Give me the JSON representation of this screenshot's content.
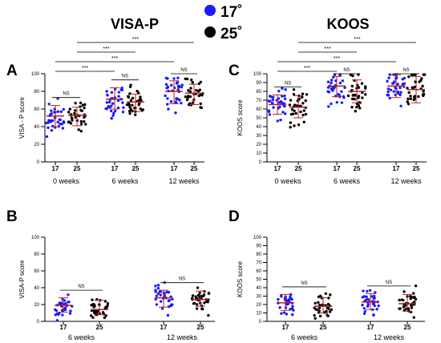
{
  "figure": {
    "legend": [
      {
        "label": "17˚",
        "color": "#1a1aff"
      },
      {
        "label": "25˚",
        "color": "#000000"
      }
    ],
    "colors": {
      "mean_line": "#b22222",
      "sig_line": "#000000"
    }
  },
  "chart_data": [
    {
      "panel": "A",
      "type": "scatter",
      "title": "VISA-P",
      "ylabel": "VISA - P score",
      "ylim": [
        0,
        100
      ],
      "yticks": [
        0,
        20,
        40,
        60,
        80,
        100
      ],
      "groups": [
        "0 weeks",
        "6 weeks",
        "12 weeks"
      ],
      "conditions": [
        "17",
        "25"
      ],
      "summary": [
        {
          "group": "0 weeks",
          "cond": "17",
          "mean": 52,
          "low": 40,
          "high": 64
        },
        {
          "group": "0 weeks",
          "cond": "25",
          "mean": 53,
          "low": 41,
          "high": 62
        },
        {
          "group": "6 weeks",
          "cond": "17",
          "mean": 71,
          "low": 60,
          "high": 84
        },
        {
          "group": "6 weeks",
          "cond": "25",
          "mean": 68,
          "low": 57,
          "high": 77
        },
        {
          "group": "12 weeks",
          "cond": "17",
          "mean": 80,
          "low": 66,
          "high": 92
        },
        {
          "group": "12 weeks",
          "cond": "25",
          "mean": 78,
          "low": 65,
          "high": 88
        }
      ],
      "comparisons": [
        {
          "from": "0 weeks/17",
          "to": "0 weeks/25",
          "label": "NS"
        },
        {
          "from": "6 weeks/17",
          "to": "6 weeks/25",
          "label": "NS"
        },
        {
          "from": "12 weeks/17",
          "to": "12 weeks/25",
          "label": "NS"
        },
        {
          "from": "0 weeks/17",
          "to": "6 weeks/17",
          "label": "***"
        },
        {
          "from": "0 weeks/17",
          "to": "12 weeks/17",
          "label": "***"
        },
        {
          "from": "0 weeks/25",
          "to": "6 weeks/25",
          "label": "***"
        },
        {
          "from": "0 weeks/25",
          "to": "12 weeks/25",
          "label": "***"
        }
      ]
    },
    {
      "panel": "C",
      "type": "scatter",
      "title": "KOOS",
      "ylabel": "KOOS score",
      "ylim": [
        0,
        100
      ],
      "yticks": [
        0,
        10,
        20,
        30,
        40,
        50,
        60,
        70,
        80,
        90,
        100
      ],
      "groups": [
        "0 weeks",
        "6 weeks",
        "12 weeks"
      ],
      "conditions": [
        "17",
        "25"
      ],
      "summary": [
        {
          "group": "0 weeks",
          "cond": "17",
          "mean": 65,
          "low": 54,
          "high": 76
        },
        {
          "group": "0 weeks",
          "cond": "25",
          "mean": 62,
          "low": 50,
          "high": 75
        },
        {
          "group": "6 weeks",
          "cond": "17",
          "mean": 86,
          "low": 74,
          "high": 97
        },
        {
          "group": "6 weeks",
          "cond": "25",
          "mean": 80,
          "low": 67,
          "high": 93
        },
        {
          "group": "12 weeks",
          "cond": "17",
          "mean": 86,
          "low": 73,
          "high": 99
        },
        {
          "group": "12 weeks",
          "cond": "25",
          "mean": 82,
          "low": 67,
          "high": 97
        }
      ],
      "comparisons": [
        {
          "from": "0 weeks/17",
          "to": "0 weeks/25",
          "label": "NS"
        },
        {
          "from": "6 weeks/17",
          "to": "6 weeks/25",
          "label": "NS"
        },
        {
          "from": "12 weeks/17",
          "to": "12 weeks/25",
          "label": "NS"
        },
        {
          "from": "0 weeks/17",
          "to": "6 weeks/17",
          "label": "***"
        },
        {
          "from": "0 weeks/17",
          "to": "12 weeks/17",
          "label": "***"
        },
        {
          "from": "0 weeks/25",
          "to": "6 weeks/25",
          "label": "***"
        },
        {
          "from": "0 weeks/25",
          "to": "12 weeks/25",
          "label": "***"
        }
      ]
    },
    {
      "panel": "B",
      "type": "scatter",
      "title": "",
      "ylabel": "VISA-P score",
      "ylim": [
        0,
        100
      ],
      "yticks": [
        0,
        20,
        40,
        60,
        80,
        100
      ],
      "groups": [
        "6 weeks",
        "12 weeks"
      ],
      "conditions": [
        "17",
        "25"
      ],
      "summary": [
        {
          "group": "6 weeks",
          "cond": "17",
          "mean": 19,
          "low": 11,
          "high": 28
        },
        {
          "group": "6 weeks",
          "cond": "25",
          "mean": 14,
          "low": 8,
          "high": 25
        },
        {
          "group": "12 weeks",
          "cond": "17",
          "mean": 28,
          "low": 17,
          "high": 37
        },
        {
          "group": "12 weeks",
          "cond": "25",
          "mean": 26,
          "low": 18,
          "high": 36
        }
      ],
      "comparisons": [
        {
          "from": "6 weeks/17",
          "to": "6 weeks/25",
          "label": "NS"
        },
        {
          "from": "12 weeks/17",
          "to": "12 weeks/25",
          "label": "NS"
        }
      ]
    },
    {
      "panel": "D",
      "type": "scatter",
      "title": "",
      "ylabel": "KOOS score",
      "ylim": [
        0,
        100
      ],
      "yticks": [
        0,
        10,
        20,
        30,
        40,
        50,
        60,
        70,
        80,
        90,
        100
      ],
      "groups": [
        "6 weeks",
        "12 weeks"
      ],
      "conditions": [
        "17",
        "25"
      ],
      "summary": [
        {
          "group": "6 weeks",
          "cond": "17",
          "mean": 22,
          "low": 13,
          "high": 32
        },
        {
          "group": "6 weeks",
          "cond": "25",
          "mean": 18,
          "low": 10,
          "high": 28
        },
        {
          "group": "12 weeks",
          "cond": "17",
          "mean": 23,
          "low": 14,
          "high": 33
        },
        {
          "group": "12 weeks",
          "cond": "25",
          "mean": 21,
          "low": 12,
          "high": 32
        }
      ],
      "comparisons": [
        {
          "from": "6 weeks/17",
          "to": "6 weeks/25",
          "label": "NS"
        },
        {
          "from": "12 weeks/17",
          "to": "12 weeks/25",
          "label": "NS"
        }
      ]
    }
  ]
}
